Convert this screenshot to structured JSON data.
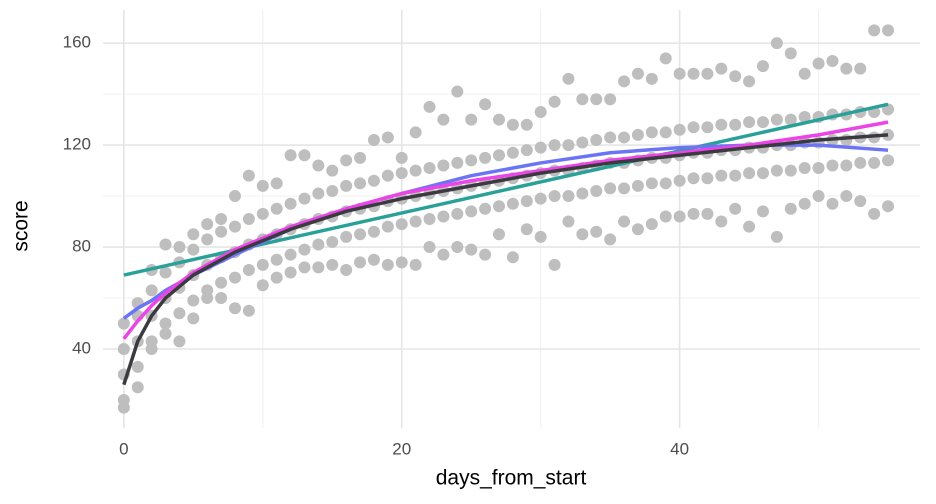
{
  "chart_data": {
    "type": "scatter",
    "xlabel": "days_from_start",
    "ylabel": "score",
    "xlim": [
      -1.5,
      57.3
    ],
    "ylim": [
      9,
      173
    ],
    "xticks": [
      0,
      20,
      40
    ],
    "yticks": [
      40,
      80,
      120,
      160
    ],
    "xminor": [
      10,
      30,
      50
    ],
    "yminor": [
      60,
      100,
      140
    ],
    "grid": true,
    "point_color": "#bebebe",
    "x": [
      0,
      0,
      0,
      0,
      0,
      1,
      1,
      1,
      1,
      1,
      2,
      2,
      2,
      2,
      2,
      3,
      3,
      3,
      3,
      3,
      4,
      4,
      4,
      4,
      4,
      5,
      5,
      5,
      5,
      5,
      6,
      6,
      6,
      6,
      6,
      7,
      7,
      7,
      7,
      7,
      8,
      8,
      8,
      8,
      8,
      9,
      9,
      9,
      9,
      9,
      10,
      10,
      10,
      10,
      10,
      11,
      11,
      11,
      11,
      11,
      12,
      12,
      12,
      12,
      12,
      13,
      13,
      13,
      13,
      13,
      14,
      14,
      14,
      14,
      14,
      15,
      15,
      15,
      15,
      15,
      16,
      16,
      16,
      16,
      16,
      17,
      17,
      17,
      17,
      17,
      18,
      18,
      18,
      18,
      18,
      19,
      19,
      19,
      19,
      19,
      20,
      20,
      20,
      20,
      20,
      21,
      21,
      21,
      21,
      21,
      22,
      22,
      22,
      22,
      22,
      23,
      23,
      23,
      23,
      23,
      24,
      24,
      24,
      24,
      24,
      25,
      25,
      25,
      25,
      25,
      26,
      26,
      26,
      26,
      26,
      27,
      27,
      27,
      27,
      27,
      28,
      28,
      28,
      28,
      28,
      29,
      29,
      29,
      29,
      29,
      30,
      30,
      30,
      30,
      30,
      31,
      31,
      31,
      31,
      31,
      32,
      32,
      32,
      32,
      32,
      33,
      33,
      33,
      33,
      33,
      34,
      34,
      34,
      34,
      34,
      35,
      35,
      35,
      35,
      35,
      36,
      36,
      36,
      36,
      36,
      37,
      37,
      37,
      37,
      37,
      38,
      38,
      38,
      38,
      38,
      39,
      39,
      39,
      39,
      39,
      40,
      40,
      40,
      40,
      40,
      41,
      41,
      41,
      41,
      41,
      42,
      42,
      42,
      42,
      42,
      43,
      43,
      43,
      43,
      43,
      44,
      44,
      44,
      44,
      44,
      45,
      45,
      45,
      45,
      45,
      46,
      46,
      46,
      46,
      46,
      47,
      47,
      47,
      47,
      47,
      48,
      48,
      48,
      48,
      48,
      49,
      49,
      49,
      49,
      49,
      50,
      50,
      50,
      50,
      50,
      51,
      51,
      51,
      51,
      51,
      52,
      52,
      52,
      52,
      52,
      53,
      53,
      53,
      53,
      53,
      54,
      54,
      54,
      54,
      54,
      55,
      55,
      55,
      55,
      55
    ],
    "y": [
      17,
      20,
      30,
      40,
      50,
      25,
      33,
      43,
      53,
      58,
      40,
      43,
      53,
      63,
      71,
      46,
      50,
      60,
      70,
      81,
      43,
      54,
      64,
      74,
      80,
      52,
      59,
      69,
      79,
      85,
      60,
      63,
      73,
      83,
      89,
      60,
      66,
      76,
      86,
      91,
      56,
      68,
      78,
      88,
      100,
      55,
      71,
      81,
      91,
      108,
      65,
      73,
      83,
      93,
      104,
      68,
      75,
      85,
      95,
      105,
      70,
      77,
      87,
      97,
      116,
      72,
      79,
      89,
      99,
      116,
      72,
      81,
      91,
      101,
      112,
      73,
      82,
      92,
      102,
      110,
      71,
      84,
      94,
      104,
      114,
      74,
      85,
      95,
      105,
      115,
      75,
      86,
      96,
      106,
      122,
      73,
      88,
      98,
      108,
      123,
      74,
      89,
      99,
      109,
      115,
      73,
      90,
      100,
      110,
      125,
      80,
      91,
      101,
      111,
      135,
      77,
      92,
      102,
      112,
      130,
      80,
      93,
      103,
      113,
      141,
      79,
      94,
      104,
      114,
      130,
      77,
      95,
      105,
      115,
      136,
      85,
      96,
      106,
      116,
      130,
      76,
      97,
      107,
      117,
      128,
      87,
      98,
      108,
      118,
      128,
      84,
      99,
      109,
      119,
      133,
      73,
      100,
      110,
      120,
      137,
      90,
      100,
      110,
      120,
      146,
      85,
      101,
      111,
      121,
      138,
      86,
      102,
      112,
      122,
      138,
      83,
      103,
      113,
      123,
      138,
      90,
      103,
      113,
      123,
      145,
      87,
      104,
      114,
      124,
      148,
      89,
      105,
      115,
      125,
      146,
      92,
      105,
      115,
      125,
      154,
      92,
      106,
      116,
      126,
      148,
      93,
      107,
      117,
      127,
      148,
      93,
      107,
      117,
      127,
      148,
      90,
      108,
      118,
      128,
      150,
      95,
      108,
      118,
      128,
      147,
      88,
      109,
      119,
      129,
      145,
      94,
      109,
      119,
      129,
      151,
      84,
      110,
      120,
      130,
      160,
      95,
      110,
      120,
      130,
      156,
      97,
      111,
      121,
      131,
      148,
      100,
      111,
      121,
      131,
      152,
      97,
      112,
      122,
      132,
      153,
      100,
      112,
      122,
      132,
      150,
      98,
      113,
      123,
      133,
      150,
      93,
      113,
      123,
      133,
      165,
      96,
      114,
      124,
      134,
      165
    ],
    "lines": [
      {
        "color": "#2aa198",
        "x": [
          0,
          55
        ],
        "values": [
          69,
          136
        ]
      },
      {
        "color": "#6b74f5",
        "x": [
          0,
          1,
          2,
          3,
          5,
          8,
          12,
          16,
          20,
          25,
          30,
          35,
          40,
          45,
          50,
          55
        ],
        "values": [
          52,
          56,
          59,
          63,
          69,
          77,
          87,
          95,
          101,
          108,
          113,
          117,
          119,
          120,
          120,
          118
        ]
      },
      {
        "color": "#ec44e6",
        "x": [
          0,
          1,
          2,
          3,
          5,
          8,
          12,
          16,
          20,
          25,
          30,
          35,
          40,
          45,
          50,
          55
        ],
        "values": [
          44,
          51,
          57,
          62,
          70,
          79,
          88,
          95,
          101,
          106,
          110,
          114,
          117,
          120,
          124,
          129
        ]
      },
      {
        "color": "#3a3a40",
        "x": [
          0,
          1,
          2,
          3,
          5,
          8,
          12,
          16,
          20,
          25,
          30,
          35,
          40,
          45,
          50,
          55
        ],
        "values": [
          26,
          43,
          53,
          60,
          69,
          78,
          87,
          94,
          99,
          104,
          109,
          113,
          116,
          119,
          122,
          124
        ]
      }
    ]
  }
}
